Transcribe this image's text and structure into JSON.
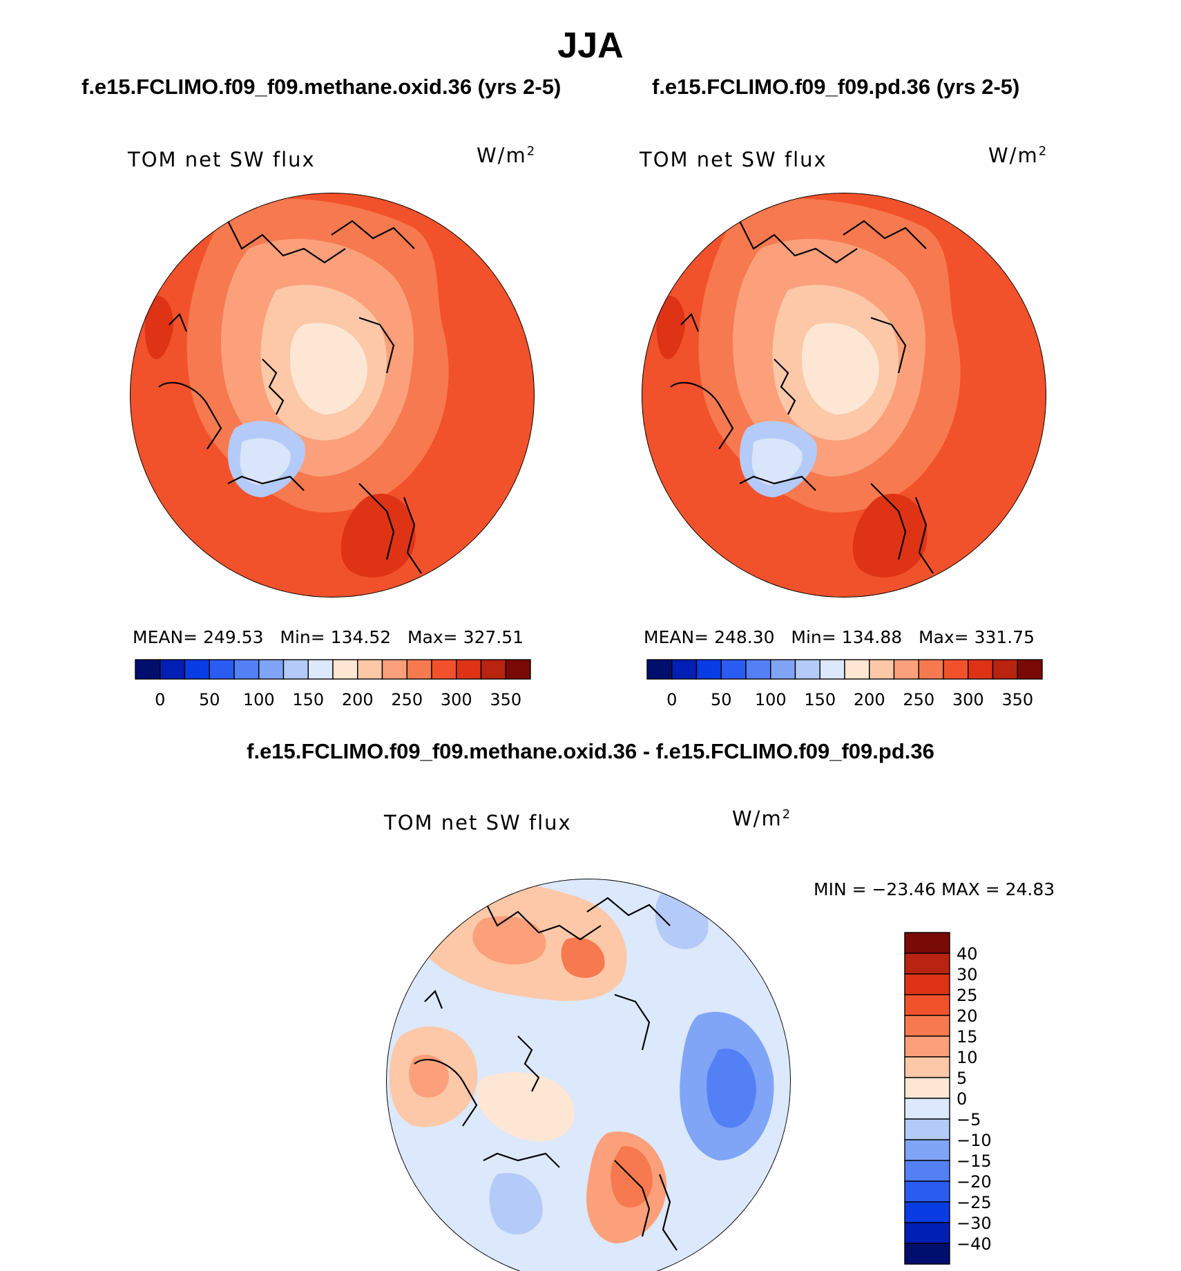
{
  "title": "JJA",
  "units_main": "W/m",
  "units_sup": "2",
  "variable": "TOM net SW flux",
  "chart_data": [
    {
      "type": "heatmap",
      "projection": "north-polar-stereographic",
      "case": "f.e15.FCLIMO.f09_f09.methane.oxid.36 (yrs 2-5)",
      "variable": "TOM net SW flux",
      "units": "W/m2",
      "stats": {
        "mean_label": "MEAN=",
        "mean": "249.53",
        "min_label": "Min=",
        "min": "134.52",
        "max_label": "Max=",
        "max": "327.51"
      },
      "colorbar": {
        "ticks": [
          "0",
          "50",
          "100",
          "150",
          "200",
          "250",
          "300",
          "350"
        ],
        "colors": [
          "#000e6e",
          "#001fb4",
          "#0a3ce6",
          "#2a5cf2",
          "#5380f4",
          "#80a4f6",
          "#b4caf8",
          "#dce8fb",
          "#fde6d4",
          "#fcc8a8",
          "#fba07a",
          "#f7794f",
          "#f2522b",
          "#df3316",
          "#b82410",
          "#7a0a05"
        ]
      }
    },
    {
      "type": "heatmap",
      "projection": "north-polar-stereographic",
      "case": "f.e15.FCLIMO.f09_f09.pd.36 (yrs 2-5)",
      "variable": "TOM net SW flux",
      "units": "W/m2",
      "stats": {
        "mean_label": "MEAN=",
        "mean": "248.30",
        "min_label": "Min=",
        "min": "134.88",
        "max_label": "Max=",
        "max": "331.75"
      },
      "colorbar": {
        "ticks": [
          "0",
          "50",
          "100",
          "150",
          "200",
          "250",
          "300",
          "350"
        ],
        "colors": [
          "#000e6e",
          "#001fb4",
          "#0a3ce6",
          "#2a5cf2",
          "#5380f4",
          "#80a4f6",
          "#b4caf8",
          "#dce8fb",
          "#fde6d4",
          "#fcc8a8",
          "#fba07a",
          "#f7794f",
          "#f2522b",
          "#df3316",
          "#b82410",
          "#7a0a05"
        ]
      }
    },
    {
      "type": "heatmap",
      "projection": "north-polar-stereographic",
      "case": "f.e15.FCLIMO.f09_f09.methane.oxid.36 - f.e15.FCLIMO.f09_f09.pd.36",
      "variable": "TOM net SW flux",
      "units": "W/m2",
      "stats": {
        "text": "MIN = −23.46 MAX =   24.83",
        "min": "-23.46",
        "max": "24.83"
      },
      "colorbar": {
        "ticks": [
          "40",
          "30",
          "25",
          "20",
          "15",
          "10",
          "5",
          "0",
          "−5",
          "−10",
          "−15",
          "−20",
          "−25",
          "−30",
          "−40"
        ],
        "colors": [
          "#7a0a05",
          "#b82410",
          "#df3316",
          "#f2522b",
          "#f7794f",
          "#fba07a",
          "#fcc8a8",
          "#fde6d4",
          "#dce8fb",
          "#b4caf8",
          "#80a4f6",
          "#5380f4",
          "#2a5cf2",
          "#0a3ce6",
          "#001fb4",
          "#000e6e"
        ]
      }
    }
  ]
}
